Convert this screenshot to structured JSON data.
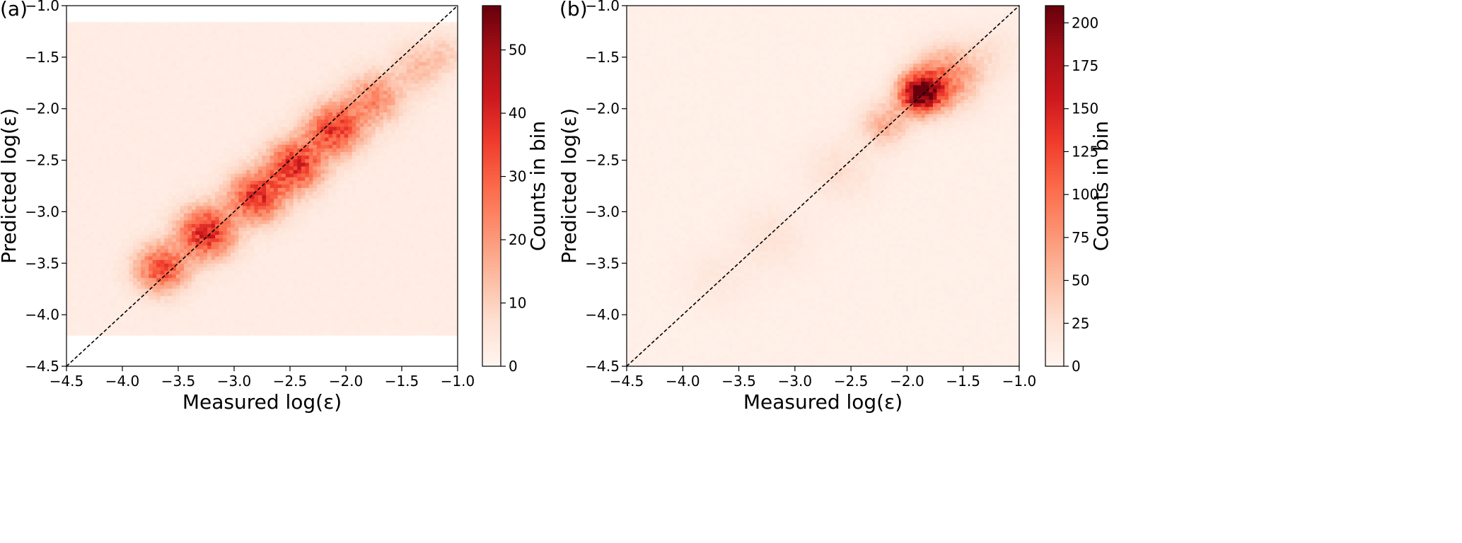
{
  "figure": {
    "panels": [
      {
        "label": "(a)"
      },
      {
        "label": "(b)"
      }
    ]
  },
  "colors": {
    "colormap": "Reds",
    "identity_line": "#000000"
  },
  "chart_data": [
    {
      "type": "heatmap",
      "panel": "(a)",
      "title": "",
      "xlabel": "Measured log(ε)",
      "ylabel": "Predicted log(ε)",
      "xlim": [
        -4.5,
        -1.0
      ],
      "ylim": [
        -4.5,
        -1.0
      ],
      "xticks": [
        -4.5,
        -4.0,
        -3.5,
        -3.0,
        -2.5,
        -2.0,
        -1.5,
        -1.0
      ],
      "yticks": [
        -4.5,
        -4.0,
        -3.5,
        -3.0,
        -2.5,
        -2.0,
        -1.5,
        -1.0
      ],
      "tick_labels": [
        "−4.5",
        "−4.0",
        "−3.5",
        "−3.0",
        "−2.5",
        "−2.0",
        "−1.5",
        "−1.0"
      ],
      "colorbar": {
        "label": "Counts in bin",
        "min": 0,
        "max": 57,
        "ticks": [
          0,
          10,
          20,
          30,
          40,
          50
        ]
      },
      "histogram_extent": {
        "y_min": -4.2,
        "y_max": -1.16
      },
      "reference_line": {
        "style": "dashed",
        "from": [
          -4.5,
          -4.5
        ],
        "to": [
          -1.0,
          -1.0
        ]
      },
      "density_model": {
        "description": "dense band along y = x",
        "core": [
          {
            "x": -3.65,
            "y": -3.55,
            "count": 30,
            "spread": 0.16
          },
          {
            "x": -3.25,
            "y": -3.2,
            "count": 38,
            "spread": 0.17
          },
          {
            "x": -2.8,
            "y": -2.85,
            "count": 34,
            "spread": 0.17
          },
          {
            "x": -2.45,
            "y": -2.55,
            "count": 36,
            "spread": 0.17
          },
          {
            "x": -2.1,
            "y": -2.2,
            "count": 33,
            "spread": 0.17
          },
          {
            "x": -1.75,
            "y": -1.9,
            "count": 20,
            "spread": 0.17
          },
          {
            "x": -1.35,
            "y": -1.6,
            "count": 10,
            "spread": 0.16
          },
          {
            "x": -1.1,
            "y": -1.45,
            "count": 6,
            "spread": 0.13
          }
        ],
        "background_count": 3
      }
    },
    {
      "type": "heatmap",
      "panel": "(b)",
      "title": "",
      "xlabel": "Measured log(ε)",
      "ylabel": "Predicted log(ε)",
      "xlim": [
        -4.5,
        -1.0
      ],
      "ylim": [
        -4.5,
        -1.0
      ],
      "xticks": [
        -4.5,
        -4.0,
        -3.5,
        -3.0,
        -2.5,
        -2.0,
        -1.5,
        -1.0
      ],
      "yticks": [
        -4.5,
        -4.0,
        -3.5,
        -3.0,
        -2.5,
        -2.0,
        -1.5,
        -1.0
      ],
      "tick_labels": [
        "−4.5",
        "−4.0",
        "−3.5",
        "−3.0",
        "−2.5",
        "−2.0",
        "−1.5",
        "−1.0"
      ],
      "colorbar": {
        "label": "Counts in bin",
        "min": 0,
        "max": 210,
        "ticks": [
          0,
          25,
          50,
          75,
          100,
          125,
          150,
          175,
          200
        ]
      },
      "histogram_extent": {
        "y_min": -4.5,
        "y_max": -1.0
      },
      "reference_line": {
        "style": "dashed",
        "from": [
          -4.5,
          -4.5
        ],
        "to": [
          -1.0,
          -1.0
        ]
      },
      "density_model": {
        "description": "dense cluster near (-1.9, -1.85) with faint tail along y = x",
        "core": [
          {
            "x": -1.88,
            "y": -1.85,
            "count": 200,
            "spread": 0.13
          },
          {
            "x": -1.65,
            "y": -1.7,
            "count": 80,
            "spread": 0.2
          },
          {
            "x": -2.2,
            "y": -2.15,
            "count": 50,
            "spread": 0.15
          },
          {
            "x": -2.6,
            "y": -2.6,
            "count": 20,
            "spread": 0.2
          },
          {
            "x": -3.2,
            "y": -3.25,
            "count": 14,
            "spread": 0.22
          },
          {
            "x": -3.7,
            "y": -3.65,
            "count": 10,
            "spread": 0.2
          },
          {
            "x": -1.25,
            "y": -1.45,
            "count": 15,
            "spread": 0.18
          }
        ],
        "background_count": 7
      }
    }
  ]
}
